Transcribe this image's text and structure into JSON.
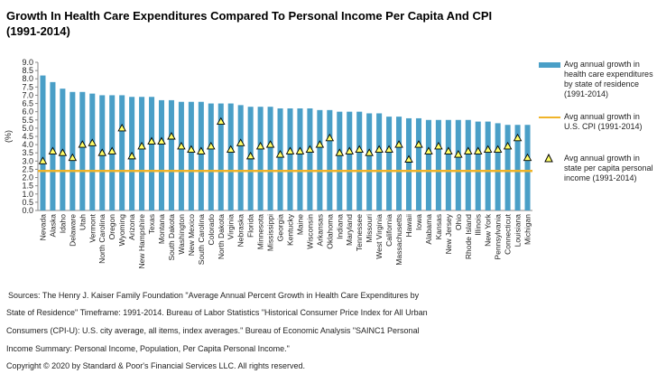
{
  "title": "Growth In Health Care Expenditures Compared To Personal Income Per Capita And CPI (1991-2014)",
  "legend": {
    "bars": "Avg annual growth in health care expenditures by state of residence (1991-2014)",
    "line": "Avg annual growth in U.S. CPI (1991-2014)",
    "triangles": "Avg annual growth in state per capita personal income (1991-2014)"
  },
  "notes": {
    "s1": "Sources: The Henry J. Kaiser Family Foundation \"Average Annual Percent Growth in Health Care Expenditures by",
    "s2": "State of Residence\" Timeframe: 1991-2014.  Bureau of Labor Statistics \"Historical Consumer Price Index for All Urban",
    "s3": "Consumers (CPI-U): U.S. city average, all items, index averages.\" Bureau of Economic Analysis \"SAINC1 Personal",
    "s4": "Income Summary: Personal Income, Population, Per Capita Personal Income.\"",
    "s5": "Copyright © 2020 by Standard & Poor's Financial Services LLC. All rights reserved."
  },
  "colors": {
    "bars": "#4a9fc7",
    "line": "#f0b429",
    "triangle_fill": "#ffff66",
    "triangle_stroke": "#000000"
  },
  "chart_data": {
    "type": "bar",
    "ylabel": "(%)",
    "ylim": [
      0,
      9
    ],
    "yticks": [
      "0.0",
      "0.5",
      "1.0",
      "1.5",
      "2.0",
      "2.5",
      "3.0",
      "3.5",
      "4.0",
      "4.5",
      "5.0",
      "5.5",
      "6.0",
      "6.5",
      "7.0",
      "7.5",
      "8.0",
      "8.5",
      "9.0"
    ],
    "grid": false,
    "legend_position": "right",
    "categories": [
      "Nevada",
      "Alaska",
      "Idaho",
      "Delaware",
      "Utah",
      "Vermont",
      "North Carolina",
      "Oregon",
      "Wyoming",
      "Arizona",
      "New Hampshire",
      "Texas",
      "Montana",
      "South Dakota",
      "Washington",
      "New Mexico",
      "South Carolina",
      "Colorado",
      "North Dakota",
      "Virginia",
      "Nebraska",
      "Florida",
      "Minnesota",
      "Mississippi",
      "Georgia",
      "Kentucky",
      "Maine",
      "Wisconsin",
      "Arkansas",
      "Oklahoma",
      "Indiana",
      "Maryland",
      "Tennessee",
      "Missouri",
      "West Virginia",
      "California",
      "Massachusetts",
      "Hawaii",
      "Iowa",
      "Alabama",
      "Kansas",
      "New Jersey",
      "Ohio",
      "Rhode Island",
      "Illinois",
      "New York",
      "Pennsylvania",
      "Connecticut",
      "Louisiana",
      "Michigan"
    ],
    "series": [
      {
        "name": "Avg annual growth in health care expenditures by state of residence (1991-2014)",
        "type": "bar",
        "values": [
          8.2,
          7.8,
          7.4,
          7.2,
          7.2,
          7.1,
          7.0,
          7.0,
          7.0,
          6.9,
          6.9,
          6.9,
          6.7,
          6.7,
          6.6,
          6.6,
          6.6,
          6.5,
          6.5,
          6.5,
          6.4,
          6.3,
          6.3,
          6.3,
          6.2,
          6.2,
          6.2,
          6.2,
          6.1,
          6.1,
          6.0,
          6.0,
          6.0,
          5.9,
          5.9,
          5.7,
          5.7,
          5.6,
          5.6,
          5.5,
          5.5,
          5.5,
          5.5,
          5.5,
          5.4,
          5.4,
          5.3,
          5.2,
          5.2,
          5.2
        ]
      },
      {
        "name": "Avg annual growth in state per capita personal income (1991-2014)",
        "type": "marker",
        "values": [
          3.0,
          3.6,
          3.5,
          3.2,
          4.0,
          4.1,
          3.5,
          3.6,
          5.0,
          3.3,
          3.9,
          4.2,
          4.2,
          4.5,
          3.9,
          3.7,
          3.6,
          3.9,
          5.4,
          3.7,
          4.1,
          3.3,
          3.9,
          4.0,
          3.4,
          3.6,
          3.6,
          3.7,
          4.0,
          4.4,
          3.5,
          3.6,
          3.7,
          3.5,
          3.7,
          3.7,
          4.0,
          3.1,
          4.0,
          3.6,
          3.9,
          3.6,
          3.4,
          3.6,
          3.6,
          3.7,
          3.7,
          3.9,
          4.4,
          3.2
        ]
      },
      {
        "name": "Avg annual growth in U.S. CPI (1991-2014)",
        "type": "hline",
        "value": 2.4
      }
    ]
  }
}
